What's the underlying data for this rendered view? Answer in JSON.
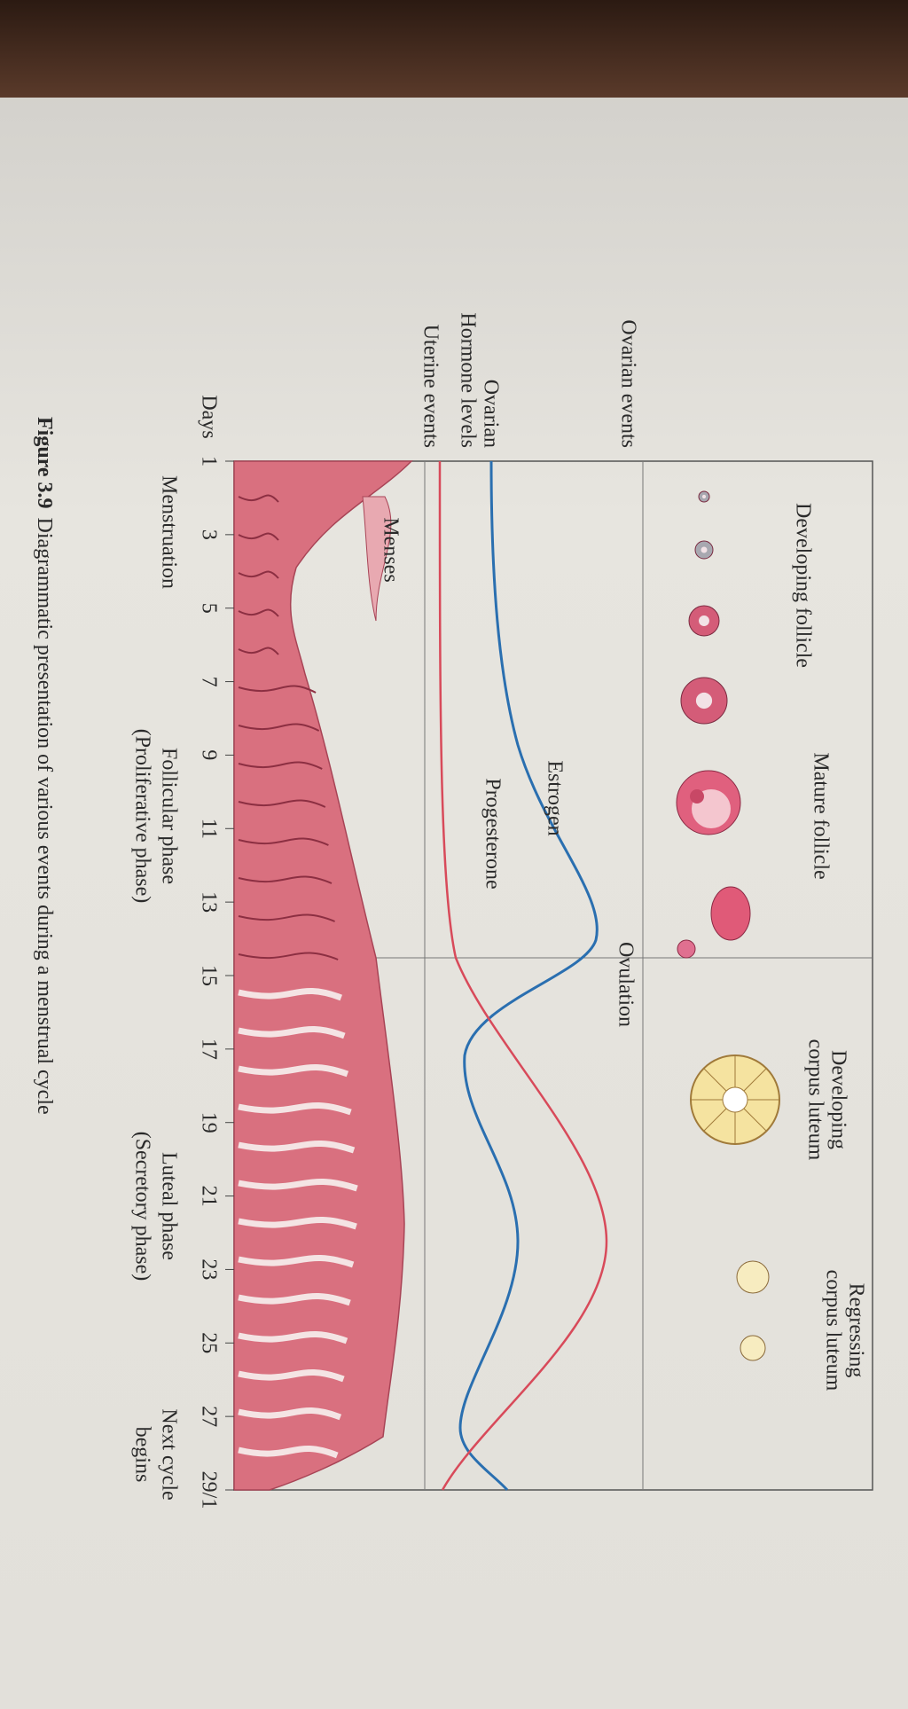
{
  "row_labels": {
    "ovarian_events": "Ovarian events",
    "hormone_levels": [
      "Ovarian",
      "Hormone levels"
    ],
    "uterine_events": "Uterine events"
  },
  "ovarian_labels": [
    [
      "Developing follicle"
    ],
    [
      "Mature follicle"
    ],
    [
      "Ovulation"
    ],
    [
      "Developing",
      "corpus luteum"
    ],
    [
      "Regressing",
      "corpus luteum"
    ]
  ],
  "hormones": [
    "Estrogen",
    "Progesterone"
  ],
  "uterine_labels": [
    "Menses"
  ],
  "days": {
    "label": "Days",
    "ticks": [
      "1",
      "3",
      "5",
      "7",
      "9",
      "11",
      "13",
      "15",
      "17",
      "19",
      "21",
      "23",
      "25",
      "27",
      "29/1"
    ]
  },
  "phases": [
    [
      "Menstruation"
    ],
    [
      "Follicular phase",
      "(Proliferative phase)"
    ],
    [
      "Luteal phase",
      "(Secretory phase)"
    ],
    [
      "Next cycle",
      "begins"
    ]
  ],
  "caption": {
    "label": "Figure 3.9",
    "text": "Diagrammatic presentation of various events during a menstrual cycle"
  }
}
